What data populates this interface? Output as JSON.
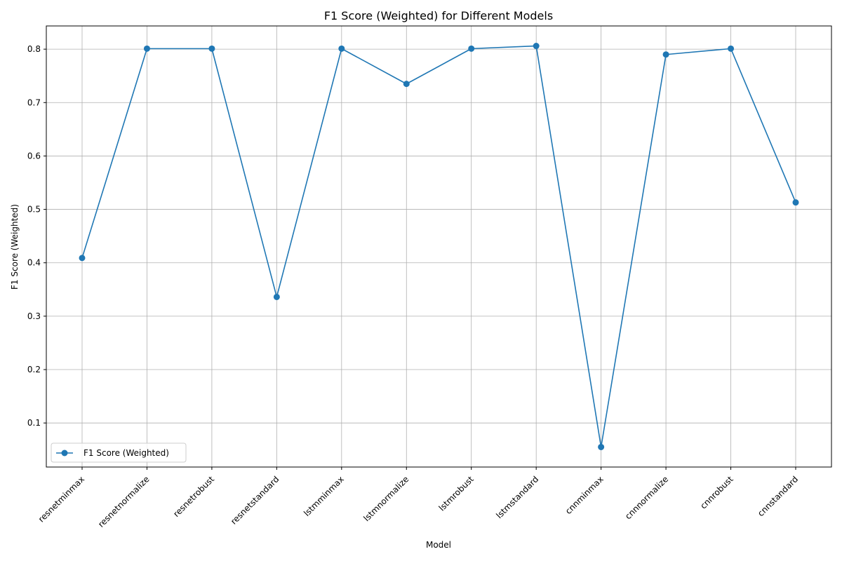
{
  "chart_data": {
    "type": "line",
    "title": "F1 Score (Weighted) for Different Models",
    "xlabel": "Model",
    "ylabel": "F1 Score (Weighted)",
    "categories": [
      "resnetminmax",
      "resnetnormalize",
      "resnetrobust",
      "resnetstandard",
      "lstmminmax",
      "lstmnormalize",
      "lstmrobust",
      "lstmstandard",
      "cnnminmax",
      "cnnnormalize",
      "cnnrobust",
      "cnnstandard"
    ],
    "series": [
      {
        "name": "F1 Score (Weighted)",
        "values": [
          0.409,
          0.801,
          0.801,
          0.336,
          0.801,
          0.735,
          0.801,
          0.806,
          0.055,
          0.79,
          0.801,
          0.513
        ],
        "color": "#1f77b4",
        "marker": "circle"
      }
    ],
    "yticks": [
      0.1,
      0.2,
      0.3,
      0.4,
      0.5,
      0.6,
      0.7,
      0.8
    ],
    "ylim": [
      0.0175,
      0.8435
    ],
    "grid": true,
    "legend_position": "lower-left",
    "x_tick_rotation_deg": 45
  }
}
